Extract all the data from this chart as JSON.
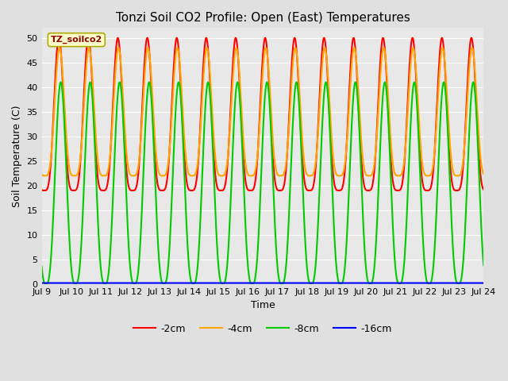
{
  "title": "Tonzi Soil CO2 Profile: Open (East) Temperatures",
  "xlabel": "Time",
  "ylabel": "Soil Temperature (C)",
  "legend_label": "TZ_soilco2",
  "series_labels": [
    "-2cm",
    "-4cm",
    "-8cm",
    "-16cm"
  ],
  "series_colors": [
    "#ff0000",
    "#ffa500",
    "#00cc00",
    "#0000ff"
  ],
  "series_linewidths": [
    1.5,
    1.5,
    1.5,
    1.5
  ],
  "ylim": [
    0,
    52
  ],
  "yticks": [
    0,
    5,
    10,
    15,
    20,
    25,
    30,
    35,
    40,
    45,
    50
  ],
  "bg_color": "#e0e0e0",
  "plot_bg_color": "#e8e8e8",
  "n_days": 15,
  "start_day": 9,
  "end_day": 24,
  "samples_per_day": 288,
  "peak_hour_2cm": 14.0,
  "peak_hour_4cm": 14.5,
  "peak_hour_8cm": 15.5,
  "peak_hour_16cm": 17.0,
  "amp_2cm": 15.5,
  "amp_4cm": 13.5,
  "amp_8cm": 20.5,
  "amp_16cm": 0.0,
  "min_2cm": 19.0,
  "min_4cm": 22.0,
  "min_8cm": 0.0,
  "min_16cm": 0.0,
  "max_2cm": 50.0,
  "max_4cm": 48.0,
  "max_8cm": 41.0,
  "max_16cm": 0.2,
  "sharpness_2cm": 4.0,
  "sharpness_4cm": 4.0,
  "sharpness_8cm": 3.0,
  "title_fontsize": 11,
  "axis_label_fontsize": 9,
  "tick_fontsize": 8,
  "figwidth": 6.4,
  "figheight": 4.8,
  "figdpi": 100
}
